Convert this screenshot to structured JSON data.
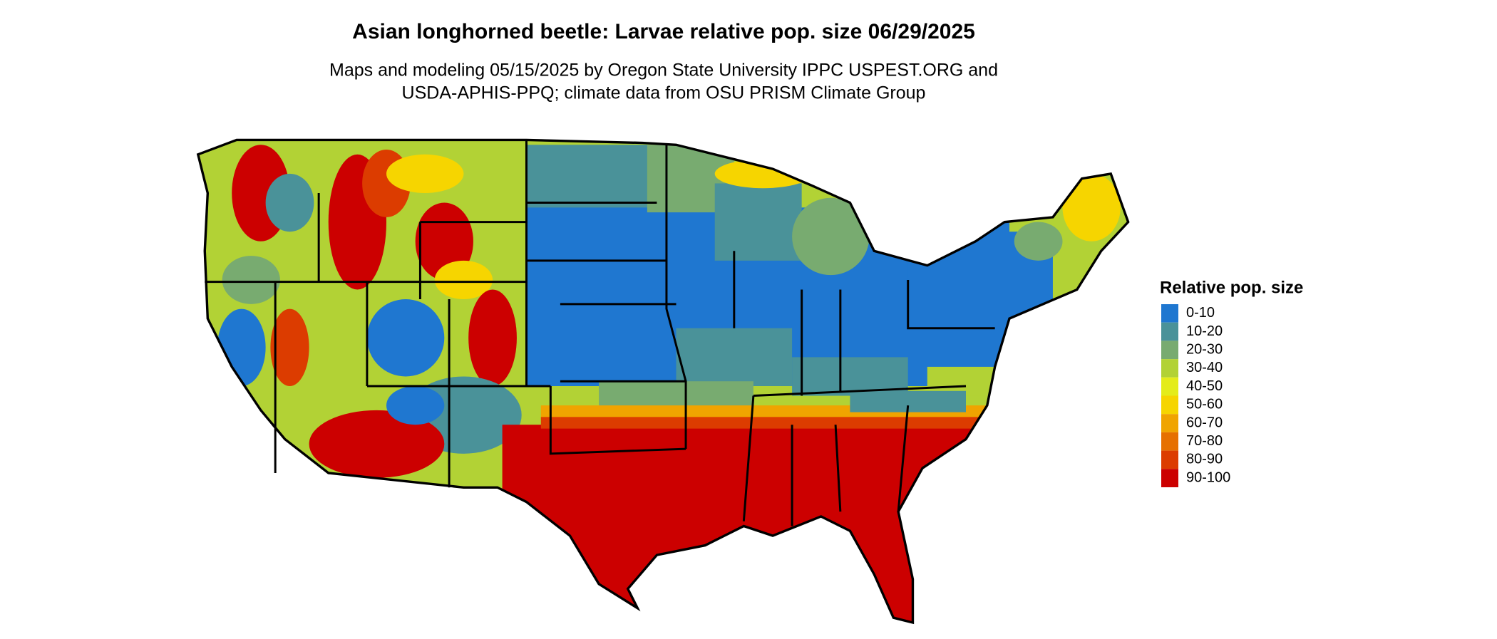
{
  "title": "Asian longhorned beetle: Larvae relative pop. size 06/29/2025",
  "subtitle": [
    "Maps and modeling 05/15/2025 by Oregon State University IPPC USPEST.ORG and",
    "USDA-APHIS-PPQ; climate data from OSU PRISM Climate Group"
  ],
  "legend": {
    "title": "Relative pop. size",
    "items": [
      {
        "label": "0-10",
        "color": "#1f77d0"
      },
      {
        "label": "10-20",
        "color": "#4a9299"
      },
      {
        "label": "20-30",
        "color": "#78ab70"
      },
      {
        "label": "30-40",
        "color": "#b2d235"
      },
      {
        "label": "40-50",
        "color": "#e4ec1a"
      },
      {
        "label": "50-60",
        "color": "#f6d500"
      },
      {
        "label": "60-70",
        "color": "#f0a400"
      },
      {
        "label": "70-80",
        "color": "#e67000"
      },
      {
        "label": "80-90",
        "color": "#dc3c00"
      },
      {
        "label": "90-100",
        "color": "#cc0000"
      }
    ]
  }
}
